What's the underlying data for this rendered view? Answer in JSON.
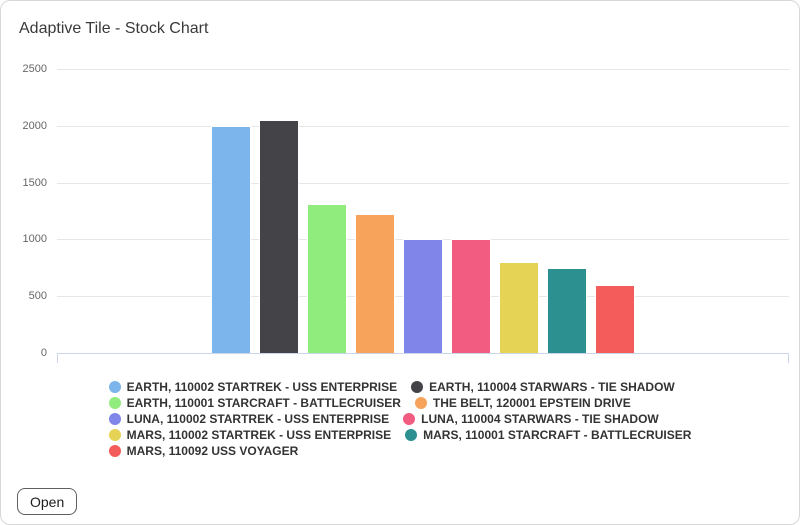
{
  "card": {
    "title": "Adaptive Tile - Stock Chart",
    "open_button": {
      "label": "Open"
    }
  },
  "chart_data": {
    "type": "bar",
    "title": "Adaptive Tile - Stock Chart",
    "categories": [
      ""
    ],
    "series": [
      {
        "name": "EARTH, 110002 STARTREK - USS ENTERPRISE",
        "color": "#7cb5ec",
        "values": [
          2000
        ]
      },
      {
        "name": "EARTH, 110004 STARWARS - TIE SHADOW",
        "color": "#434348",
        "values": [
          2050
        ]
      },
      {
        "name": "EARTH, 110001 STARCRAFT - BATTLECRUISER",
        "color": "#90ed7d",
        "values": [
          1310
        ]
      },
      {
        "name": "THE BELT, 120001 EPSTEIN DRIVE",
        "color": "#f7a35c",
        "values": [
          1220
        ]
      },
      {
        "name": "LUNA, 110002 STARTREK - USS ENTERPRISE",
        "color": "#8085e9",
        "values": [
          1000
        ]
      },
      {
        "name": "LUNA, 110004 STARWARS - TIE SHADOW",
        "color": "#f15c80",
        "values": [
          1000
        ]
      },
      {
        "name": "MARS, 110002 STARTREK - USS ENTERPRISE",
        "color": "#e4d354",
        "values": [
          800
        ]
      },
      {
        "name": "MARS, 110001 STARCRAFT - BATTLECRUISER",
        "color": "#2b908f",
        "values": [
          750
        ]
      },
      {
        "name": "MARS, 110092 USS VOYAGER",
        "color": "#f45b5b",
        "values": [
          600
        ]
      }
    ],
    "xlabel": "",
    "ylabel": "",
    "ylim": [
      0,
      2500
    ],
    "yticks": [
      0,
      500,
      1000,
      1500,
      2000,
      2500
    ],
    "grid": true,
    "legend_position": "bottom-center",
    "legend_columns": 2,
    "colors": {
      "axis_line": "#ccd6eb",
      "gridline": "#e6e6e6",
      "tick_label": "#666666",
      "legend_text": "#333333",
      "bar_border": "#ffffff",
      "card_border": "#d8d8d8",
      "title_text": "#3a3a3a"
    }
  }
}
